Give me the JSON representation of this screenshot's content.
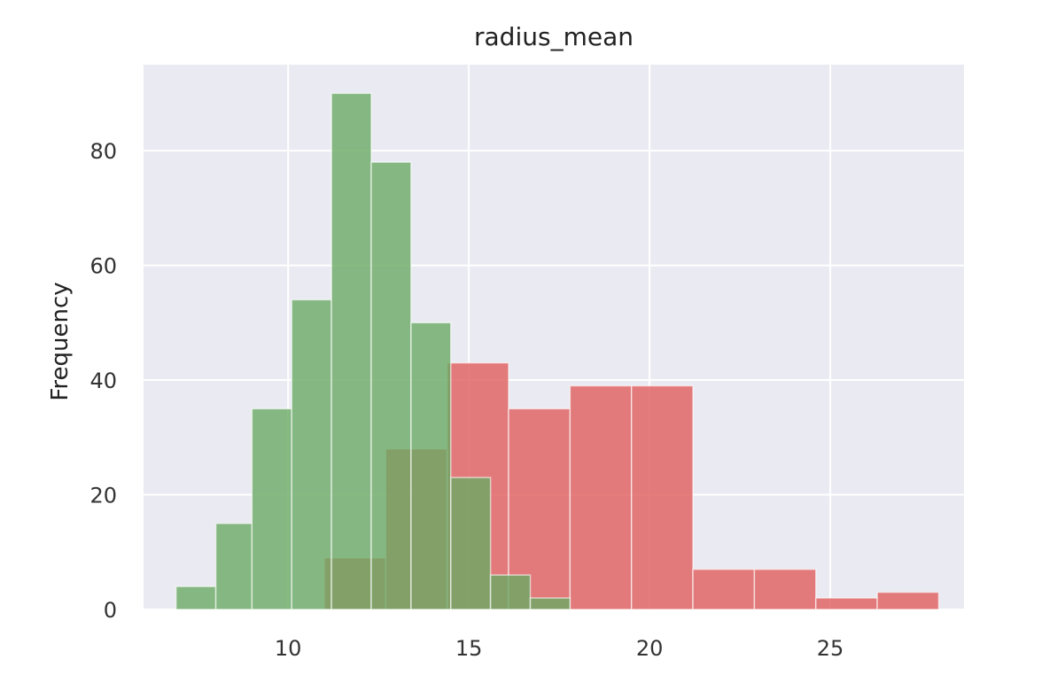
{
  "chart_data": {
    "type": "bar",
    "title": "radius_mean",
    "xlabel": "",
    "ylabel": "Frequency",
    "xlim": [
      6.0,
      28.7
    ],
    "ylim": [
      0,
      95
    ],
    "x_ticks": [
      10,
      15,
      20,
      25
    ],
    "y_ticks": [
      0,
      20,
      40,
      60,
      80
    ],
    "grid": true,
    "legend": "none",
    "series": [
      {
        "color": "#e06666",
        "opacity": 0.85,
        "bins": [
          {
            "x0": 11.0,
            "x1": 12.7,
            "count": 9
          },
          {
            "x0": 12.7,
            "x1": 14.4,
            "count": 28
          },
          {
            "x0": 14.4,
            "x1": 16.1,
            "count": 43
          },
          {
            "x0": 16.1,
            "x1": 17.8,
            "count": 35
          },
          {
            "x0": 17.8,
            "x1": 19.5,
            "count": 39
          },
          {
            "x0": 19.5,
            "x1": 21.2,
            "count": 39
          },
          {
            "x0": 21.2,
            "x1": 22.9,
            "count": 7
          },
          {
            "x0": 22.9,
            "x1": 24.6,
            "count": 7
          },
          {
            "x0": 24.6,
            "x1": 26.3,
            "count": 2
          },
          {
            "x0": 26.3,
            "x1": 28.0,
            "count": 3
          }
        ]
      },
      {
        "color": "#6aaa64",
        "opacity": 0.8,
        "bins": [
          {
            "x0": 6.9,
            "x1": 8.0,
            "count": 4
          },
          {
            "x0": 8.0,
            "x1": 9.0,
            "count": 15
          },
          {
            "x0": 9.0,
            "x1": 10.1,
            "count": 35
          },
          {
            "x0": 10.1,
            "x1": 11.2,
            "count": 54
          },
          {
            "x0": 11.2,
            "x1": 12.3,
            "count": 90
          },
          {
            "x0": 12.3,
            "x1": 13.4,
            "count": 78
          },
          {
            "x0": 13.4,
            "x1": 14.5,
            "count": 50
          },
          {
            "x0": 14.5,
            "x1": 15.6,
            "count": 23
          },
          {
            "x0": 15.6,
            "x1": 16.7,
            "count": 6
          },
          {
            "x0": 16.7,
            "x1": 17.8,
            "count": 2
          }
        ]
      }
    ],
    "background_color": "#eaeaf2",
    "grid_color": "#ffffff"
  }
}
